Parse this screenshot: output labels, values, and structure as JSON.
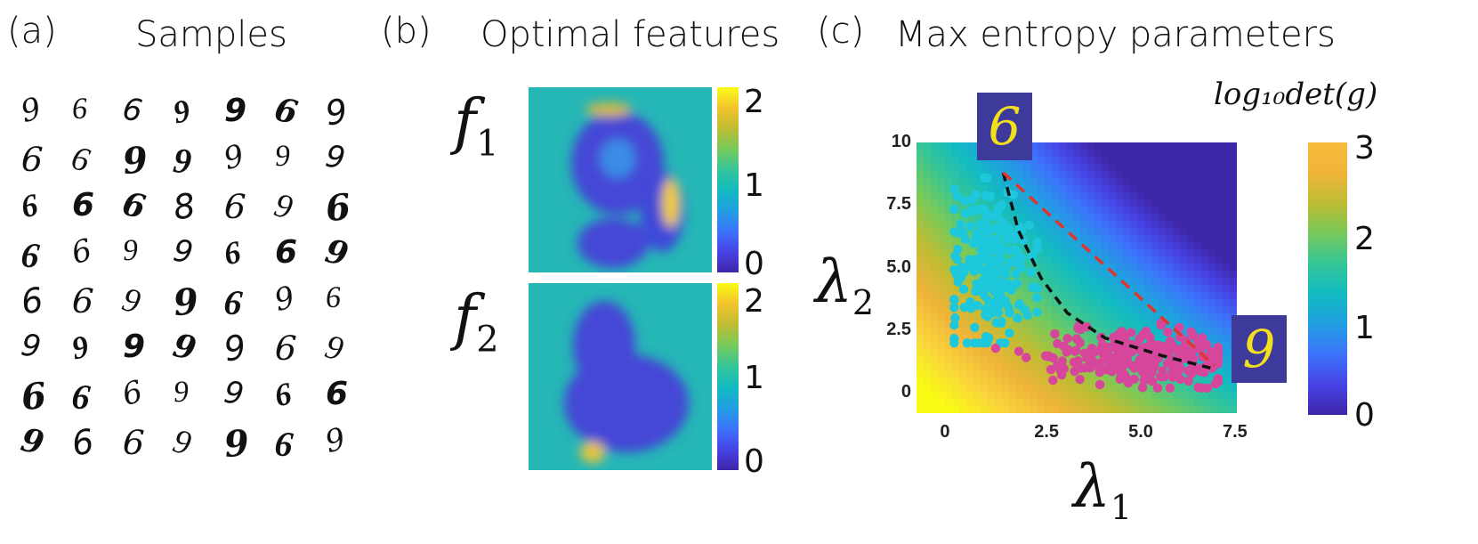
{
  "panels": {
    "a": {
      "letter": "(a)",
      "title": "Samples"
    },
    "b": {
      "letter": "(b)",
      "title": "Optimal features"
    },
    "c": {
      "letter": "(c)",
      "title": "Max entropy parameters"
    }
  },
  "samples_grid": {
    "rows": [
      [
        "9",
        "6",
        "6",
        "9",
        "9",
        "6",
        "9"
      ],
      [
        "6",
        "6",
        "9",
        "9",
        "9",
        "9",
        "9"
      ],
      [
        "6",
        "6",
        "6",
        "8",
        "6",
        "9",
        "6"
      ],
      [
        "6",
        "6",
        "9",
        "9",
        "6",
        "6",
        "9"
      ],
      [
        "6",
        "6",
        "9",
        "9",
        "6",
        "9",
        "6"
      ],
      [
        "9",
        "9",
        "9",
        "9",
        "9",
        "6",
        "9"
      ],
      [
        "6",
        "6",
        "6",
        "9",
        "9",
        "6",
        "6"
      ],
      [
        "9",
        "6",
        "6",
        "9",
        "9",
        "6",
        "9"
      ]
    ]
  },
  "features": {
    "f1": {
      "label_base": "f",
      "label_sub": "1",
      "colorbar_ticks": [
        "2",
        "1",
        "0"
      ]
    },
    "f2": {
      "label_base": "f",
      "label_sub": "2",
      "colorbar_ticks": [
        "2",
        "1",
        "0"
      ]
    }
  },
  "colormap": [
    "#3e26a8",
    "#4743e4",
    "#3c74fb",
    "#219fe1",
    "#12bbc1",
    "#35c598",
    "#76ca5b",
    "#bfbc33",
    "#f3c32d",
    "#f9fb14"
  ],
  "chart_data": {
    "type": "scatter",
    "title": "Max entropy parameters",
    "xlabel": "λ",
    "xlabel_sub": "1",
    "ylabel": "λ",
    "ylabel_sub": "2",
    "xlim": [
      -1.0,
      7.5
    ],
    "ylim": [
      -0.8,
      10.0
    ],
    "x_ticks": [
      "0",
      "2.5",
      "5.0",
      "7.5"
    ],
    "x_tick_values": [
      0,
      2.5,
      5.0,
      7.5
    ],
    "y_ticks": [
      "10",
      "7.5",
      "5.0",
      "2.5",
      "0"
    ],
    "y_tick_values": [
      10,
      7.5,
      5.0,
      2.5,
      0
    ],
    "heatmap_label": "log₁₀det(g)",
    "colorbar_ticks": [
      "3",
      "2",
      "1",
      "0"
    ],
    "colorbar_range": [
      0,
      3
    ],
    "series": [
      {
        "color": "#1ec8dc",
        "center": [
          1.0,
          5.2
        ],
        "spread": [
          0.55,
          1.6
        ],
        "n": 220
      },
      {
        "color": "#d6479c",
        "center": [
          4.8,
          1.4
        ],
        "spread": [
          1.3,
          0.55
        ],
        "n": 260
      }
    ],
    "black_curve": [
      [
        1.3,
        8.8
      ],
      [
        1.7,
        6.5
      ],
      [
        2.3,
        4.6
      ],
      [
        3.0,
        3.2
      ],
      [
        4.0,
        2.2
      ],
      [
        5.5,
        1.5
      ],
      [
        6.8,
        1.0
      ]
    ],
    "red_line": [
      [
        1.3,
        8.8
      ],
      [
        6.9,
        1.1
      ]
    ],
    "inset_top_digit": "6",
    "inset_right_digit": "9"
  }
}
